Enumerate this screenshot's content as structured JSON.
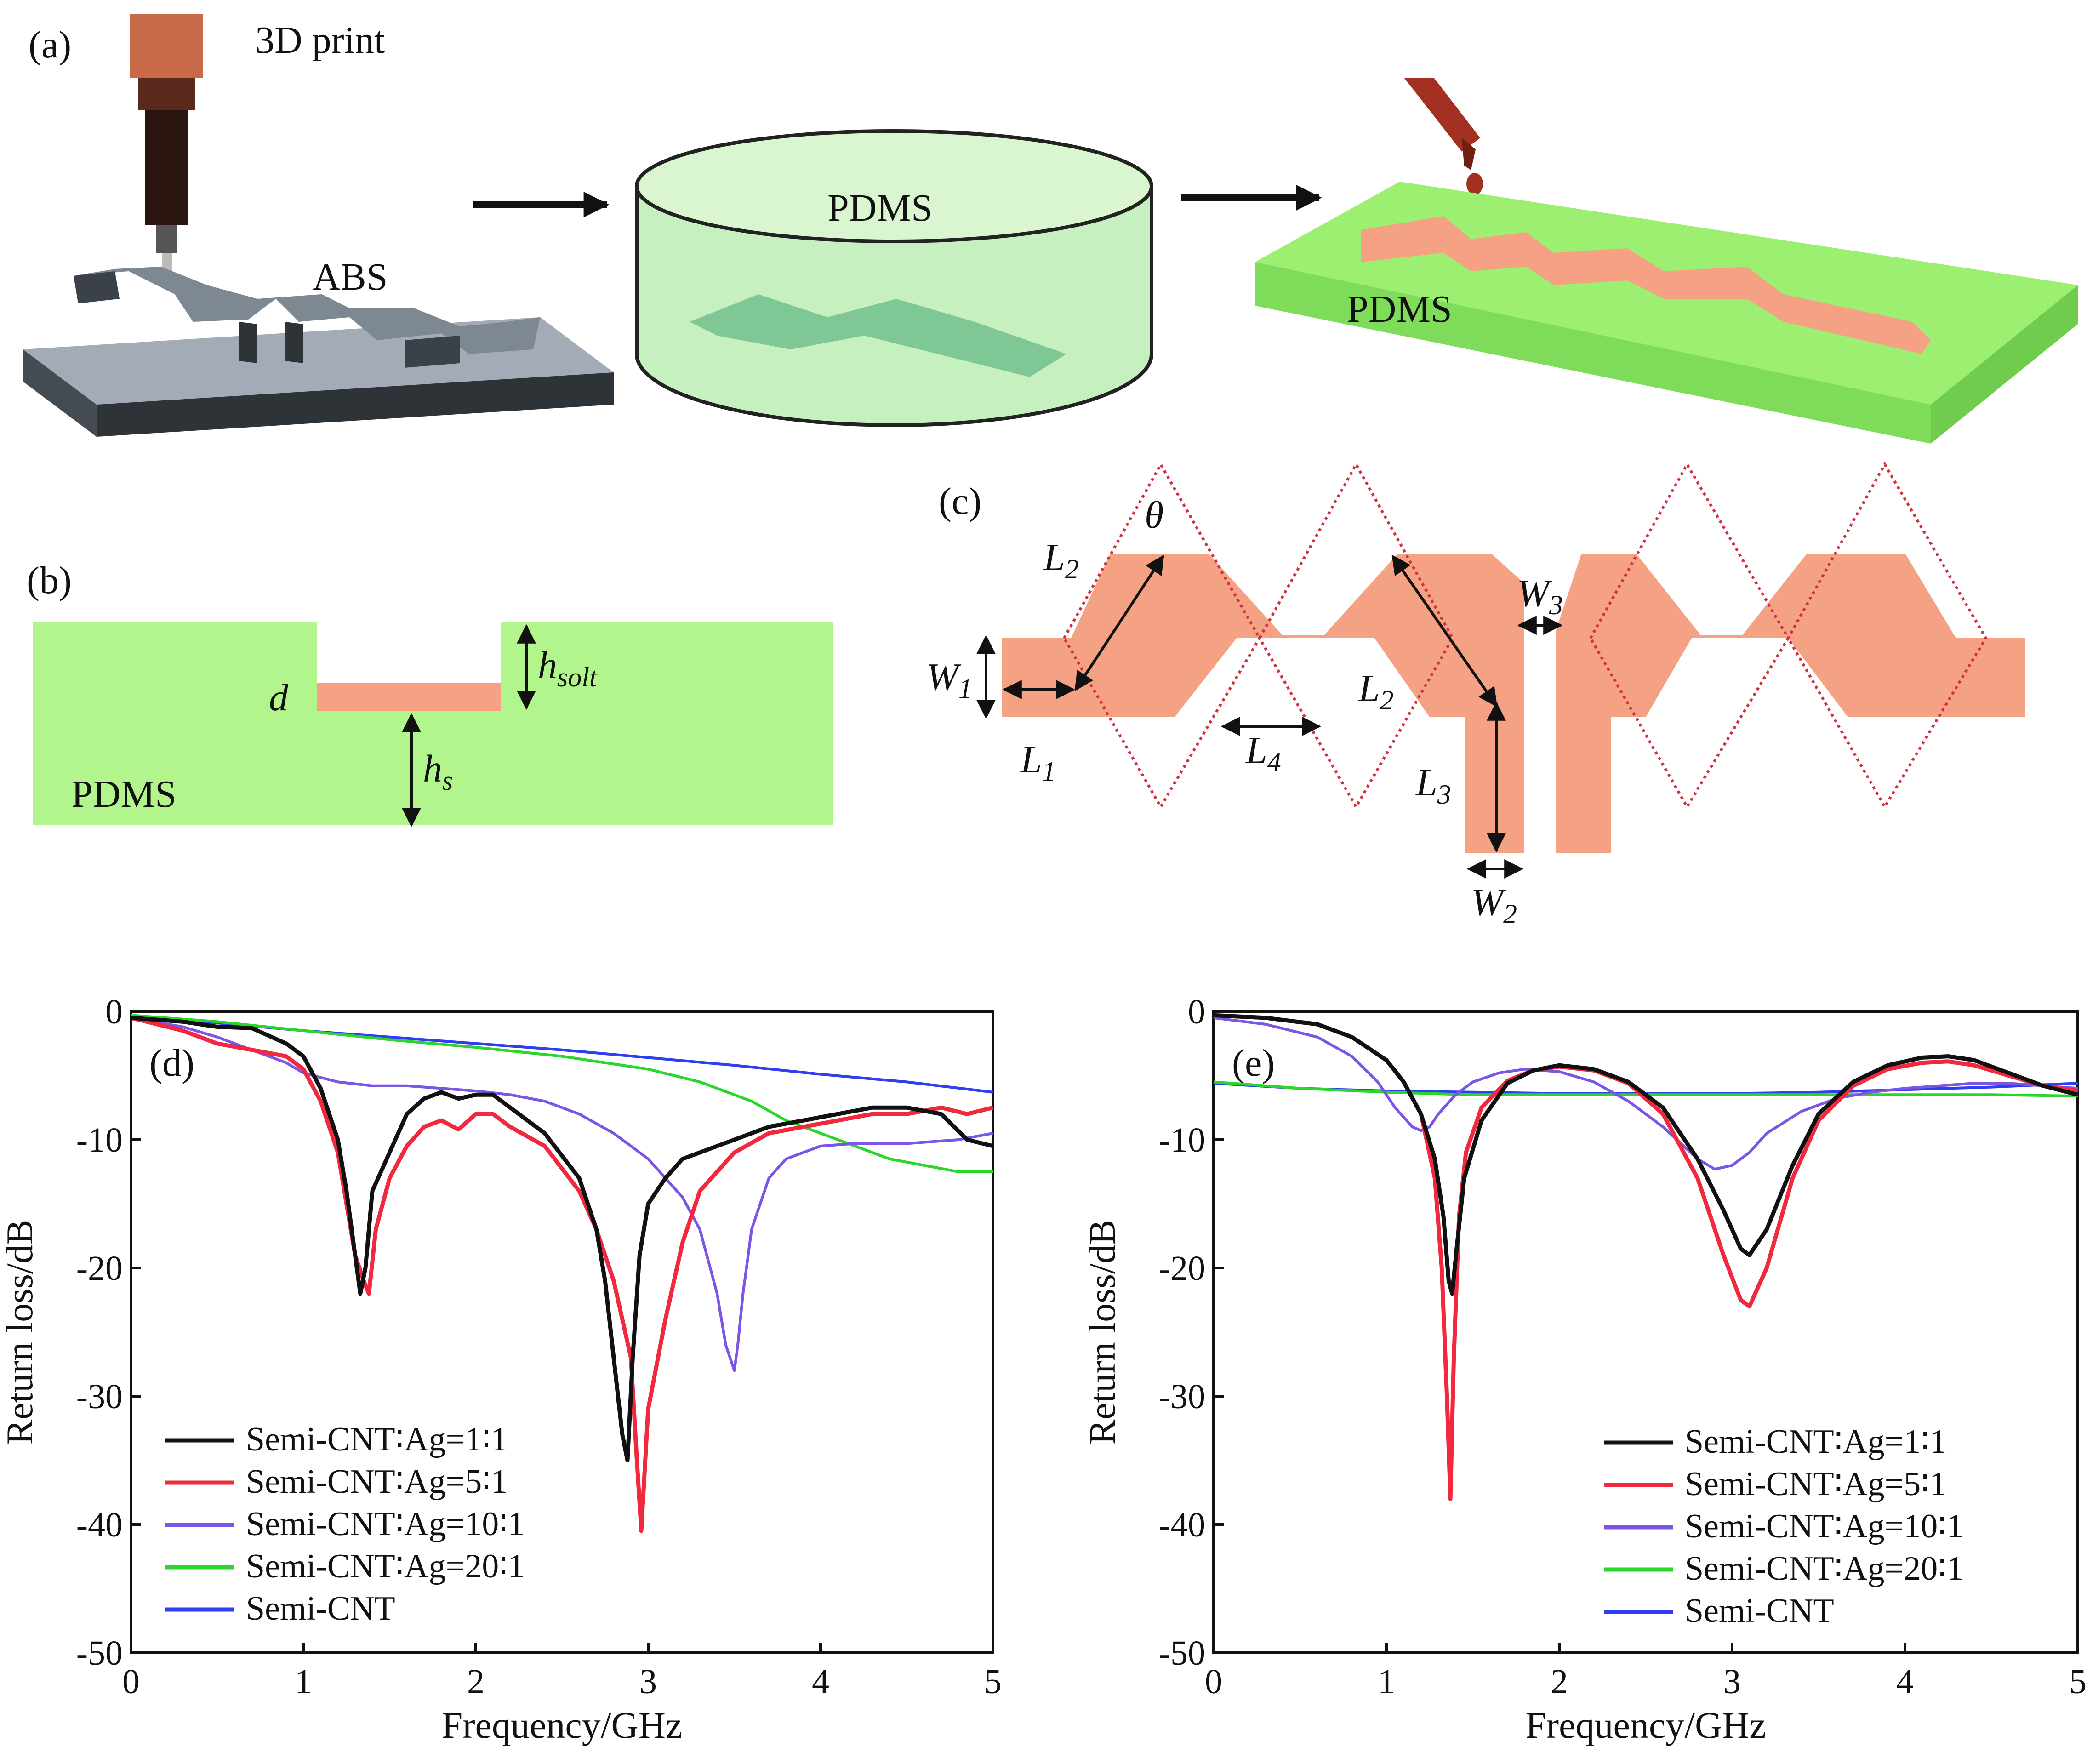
{
  "panel_a": {
    "label": "(a)",
    "print_label": "3D print",
    "abs_label": "ABS",
    "pdms_dish_label": "PDMS",
    "pdms_block_label": "PDMS"
  },
  "panel_b": {
    "label": "(b)",
    "d_label": "d",
    "h_label": "h",
    "h_solt_sub": "solt",
    "hs_sub": "s",
    "pdms_label": "PDMS"
  },
  "panel_c": {
    "label": "(c)",
    "theta": "θ",
    "L": "L",
    "W": "W",
    "sub1": "1",
    "sub2": "2",
    "sub3": "3",
    "sub4": "4"
  },
  "colors": {
    "pdms_green": "#b2f58c",
    "conductor_salmon": "#f4a283",
    "dotted_red": "#d03040",
    "abs_gray": "#9aa3ad",
    "black_series": "#111111",
    "red_series": "#f0293e",
    "violet_series": "#7b55e6",
    "green_series": "#2ad62a",
    "blue_series": "#2f3ef0"
  },
  "chart_data": [
    {
      "panel": "(d)",
      "type": "line",
      "xlabel": "Frequency/GHz",
      "ylabel": "Return loss/dB",
      "xlim": [
        0,
        5
      ],
      "ylim": [
        -50,
        0
      ],
      "xticks": [
        "0",
        "1",
        "2",
        "3",
        "4",
        "5"
      ],
      "yticks": [
        "0",
        "-10",
        "-20",
        "-30",
        "-40",
        "-50"
      ],
      "legend_position": "bottom-left",
      "series": [
        {
          "name": "Semi-CNT∶Ag=1∶1",
          "color": "#111111",
          "x": [
            0,
            0.3,
            0.5,
            0.7,
            0.9,
            1.0,
            1.1,
            1.2,
            1.25,
            1.3,
            1.33,
            1.36,
            1.4,
            1.5,
            1.6,
            1.7,
            1.8,
            1.9,
            2.0,
            2.1,
            2.2,
            2.4,
            2.6,
            2.7,
            2.75,
            2.8,
            2.85,
            2.88,
            2.91,
            2.95,
            3.0,
            3.1,
            3.2,
            3.3,
            3.5,
            3.7,
            3.9,
            4.1,
            4.3,
            4.5,
            4.7,
            4.85,
            5.0
          ],
          "y": [
            -0.5,
            -0.8,
            -1.2,
            -1.3,
            -2.5,
            -3.5,
            -6,
            -10,
            -14,
            -19,
            -22,
            -20,
            -14,
            -11,
            -8,
            -6.8,
            -6.3,
            -6.8,
            -6.5,
            -6.5,
            -7.5,
            -9.5,
            -13,
            -17,
            -21,
            -27,
            -33,
            -35,
            -27,
            -19,
            -15,
            -13,
            -11.5,
            -11,
            -10,
            -9,
            -8.5,
            -8,
            -7.5,
            -7.5,
            -8,
            -10,
            -10.5
          ]
        },
        {
          "name": "Semi-CNT∶Ag=5∶1",
          "color": "#f0293e",
          "x": [
            0,
            0.3,
            0.5,
            0.7,
            0.9,
            1.0,
            1.1,
            1.2,
            1.25,
            1.3,
            1.35,
            1.38,
            1.42,
            1.5,
            1.6,
            1.7,
            1.8,
            1.9,
            2.0,
            2.1,
            2.2,
            2.4,
            2.6,
            2.7,
            2.8,
            2.9,
            2.93,
            2.96,
            3.0,
            3.1,
            3.2,
            3.3,
            3.5,
            3.7,
            3.9,
            4.1,
            4.3,
            4.5,
            4.7,
            4.85,
            5.0
          ],
          "y": [
            -0.5,
            -1.5,
            -2.5,
            -3,
            -3.5,
            -4.5,
            -7,
            -11,
            -15,
            -19,
            -21,
            -22,
            -17,
            -13,
            -10.5,
            -9,
            -8.5,
            -9.2,
            -8,
            -8,
            -9,
            -10.5,
            -14,
            -17,
            -21,
            -27,
            -34,
            -40.5,
            -31,
            -24,
            -18,
            -14,
            -11,
            -9.5,
            -9,
            -8.5,
            -8,
            -8,
            -7.5,
            -8,
            -7.5
          ]
        },
        {
          "name": "Semi-CNT∶Ag=10∶1",
          "color": "#7b55e6",
          "x": [
            0,
            0.3,
            0.5,
            0.7,
            0.9,
            1.0,
            1.2,
            1.4,
            1.6,
            1.8,
            2.0,
            2.2,
            2.4,
            2.6,
            2.8,
            3.0,
            3.2,
            3.3,
            3.4,
            3.45,
            3.5,
            3.52,
            3.55,
            3.6,
            3.7,
            3.8,
            4.0,
            4.2,
            4.5,
            4.8,
            5.0
          ],
          "y": [
            -0.5,
            -1.2,
            -2,
            -3,
            -4,
            -4.8,
            -5.5,
            -5.8,
            -5.8,
            -6,
            -6.2,
            -6.5,
            -7,
            -8,
            -9.5,
            -11.5,
            -14.5,
            -17,
            -22,
            -26,
            -28,
            -26,
            -22,
            -17,
            -13,
            -11.5,
            -10.5,
            -10.3,
            -10.3,
            -10,
            -9.5
          ]
        },
        {
          "name": "Semi-CNT∶Ag=20∶1",
          "color": "#2ad62a",
          "x": [
            0,
            0.5,
            1.0,
            1.5,
            2.0,
            2.5,
            3.0,
            3.3,
            3.6,
            3.8,
            4.0,
            4.2,
            4.4,
            4.6,
            4.8,
            5.0
          ],
          "y": [
            -0.3,
            -0.8,
            -1.5,
            -2.2,
            -2.8,
            -3.5,
            -4.5,
            -5.5,
            -7,
            -8.5,
            -9.5,
            -10.5,
            -11.5,
            -12,
            -12.5,
            -12.5
          ]
        },
        {
          "name": "Semi-CNT",
          "color": "#2f3ef0",
          "x": [
            0,
            0.5,
            1.0,
            1.5,
            2.0,
            2.5,
            3.0,
            3.5,
            4.0,
            4.5,
            5.0
          ],
          "y": [
            -0.3,
            -0.9,
            -1.5,
            -2.0,
            -2.5,
            -3.0,
            -3.6,
            -4.2,
            -4.9,
            -5.5,
            -6.3
          ]
        }
      ]
    },
    {
      "panel": "(e)",
      "type": "line",
      "xlabel": "Frequency/GHz",
      "ylabel": "Return loss/dB",
      "xlim": [
        0,
        5
      ],
      "ylim": [
        -50,
        0
      ],
      "xticks": [
        "0",
        "1",
        "2",
        "3",
        "4",
        "5"
      ],
      "yticks": [
        "0",
        "-10",
        "-20",
        "-30",
        "-40",
        "-50"
      ],
      "legend_position": "bottom-right",
      "series": [
        {
          "name": "Semi-CNT∶Ag=1∶1",
          "color": "#111111",
          "x": [
            0,
            0.3,
            0.6,
            0.8,
            1.0,
            1.1,
            1.2,
            1.28,
            1.33,
            1.36,
            1.38,
            1.41,
            1.45,
            1.55,
            1.7,
            1.85,
            2.0,
            2.2,
            2.4,
            2.6,
            2.8,
            2.95,
            3.05,
            3.1,
            3.2,
            3.35,
            3.5,
            3.7,
            3.9,
            4.1,
            4.25,
            4.4,
            4.6,
            4.8,
            5.0
          ],
          "y": [
            -0.3,
            -0.5,
            -1,
            -2,
            -3.8,
            -5.5,
            -8,
            -11.5,
            -16,
            -21,
            -22,
            -18,
            -13,
            -8.5,
            -5.6,
            -4.6,
            -4.2,
            -4.5,
            -5.5,
            -7.5,
            -11.5,
            -15.5,
            -18.5,
            -19,
            -17,
            -12,
            -8,
            -5.5,
            -4.2,
            -3.6,
            -3.5,
            -3.8,
            -4.8,
            -5.8,
            -6.5
          ]
        },
        {
          "name": "Semi-CNT∶Ag=5∶1",
          "color": "#f0293e",
          "x": [
            0,
            0.3,
            0.6,
            0.8,
            1.0,
            1.1,
            1.2,
            1.28,
            1.32,
            1.35,
            1.37,
            1.39,
            1.42,
            1.46,
            1.55,
            1.7,
            1.85,
            2.0,
            2.2,
            2.4,
            2.6,
            2.8,
            2.95,
            3.05,
            3.1,
            3.2,
            3.35,
            3.5,
            3.7,
            3.9,
            4.1,
            4.25,
            4.4,
            4.6,
            4.8,
            5.0
          ],
          "y": [
            -0.3,
            -0.5,
            -1,
            -2,
            -3.8,
            -5.5,
            -8,
            -13,
            -20,
            -30,
            -38,
            -27,
            -16,
            -11,
            -7.5,
            -5.4,
            -4.6,
            -4.3,
            -4.6,
            -5.6,
            -8,
            -13,
            -19,
            -22.5,
            -23,
            -20,
            -13,
            -8.5,
            -5.8,
            -4.5,
            -4.0,
            -3.9,
            -4.2,
            -5.0,
            -5.8,
            -6.2
          ]
        },
        {
          "name": "Semi-CNT∶Ag=10∶1",
          "color": "#7b55e6",
          "x": [
            0,
            0.3,
            0.6,
            0.8,
            0.95,
            1.05,
            1.15,
            1.2,
            1.25,
            1.3,
            1.4,
            1.5,
            1.65,
            1.8,
            2.0,
            2.2,
            2.4,
            2.6,
            2.8,
            2.9,
            3.0,
            3.1,
            3.2,
            3.4,
            3.6,
            3.8,
            4.0,
            4.2,
            4.4,
            4.6,
            4.8,
            5.0
          ],
          "y": [
            -0.5,
            -1,
            -2,
            -3.5,
            -5.5,
            -7.5,
            -9,
            -9.3,
            -9,
            -8,
            -6.5,
            -5.5,
            -4.8,
            -4.5,
            -4.7,
            -5.5,
            -7,
            -9,
            -11.5,
            -12.3,
            -12,
            -11,
            -9.5,
            -7.8,
            -6.8,
            -6.3,
            -6.0,
            -5.8,
            -5.6,
            -5.6,
            -5.8,
            -6.0
          ]
        },
        {
          "name": "Semi-CNT∶Ag=20∶1",
          "color": "#2ad62a",
          "x": [
            0,
            0.5,
            1.0,
            1.5,
            2.0,
            2.5,
            3.0,
            3.5,
            4.0,
            4.5,
            5.0
          ],
          "y": [
            -5.5,
            -6,
            -6.3,
            -6.5,
            -6.5,
            -6.5,
            -6.5,
            -6.5,
            -6.5,
            -6.5,
            -6.6
          ]
        },
        {
          "name": "Semi-CNT",
          "color": "#2f3ef0",
          "x": [
            0,
            0.5,
            1.0,
            1.5,
            2.0,
            2.5,
            3.0,
            3.5,
            4.0,
            4.5,
            5.0
          ],
          "y": [
            -5.6,
            -6,
            -6.2,
            -6.3,
            -6.4,
            -6.4,
            -6.4,
            -6.3,
            -6.1,
            -5.9,
            -5.6
          ]
        }
      ]
    }
  ]
}
